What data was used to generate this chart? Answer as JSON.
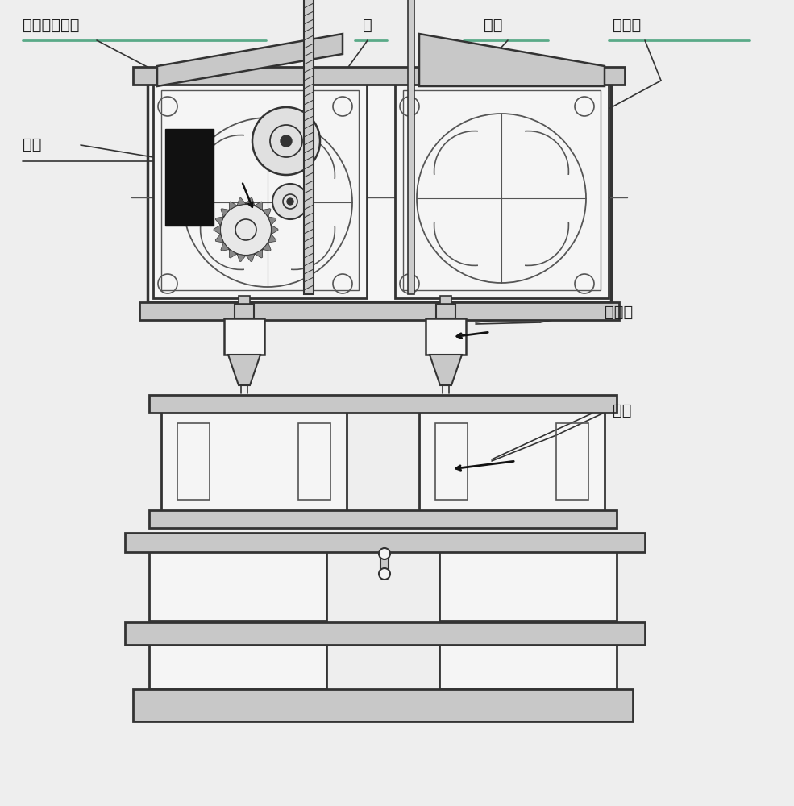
{
  "bg_color": "#eeeeee",
  "lc": "#333333",
  "lc2": "#555555",
  "blk": "#111111",
  "gray1": "#d8d8d8",
  "gray2": "#c8c8c8",
  "gray3": "#aaaaaa",
  "white": "#f5f5f5",
  "labels": {
    "zhichi": "直齿圆柱齿轮",
    "si": "丝",
    "zhuanzhou": "转轴",
    "congdonglun": "从动轮",
    "tanhuang": "弹簧",
    "jiareqi": "加热器",
    "dianji": "电机"
  },
  "fig_w": 9.85,
  "fig_h": 10.0
}
